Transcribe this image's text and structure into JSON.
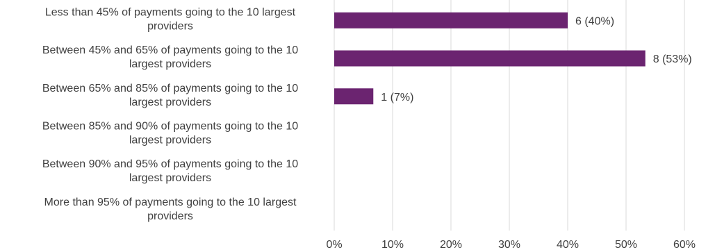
{
  "chart_data": {
    "type": "bar",
    "orientation": "horizontal",
    "categories": [
      [
        "Less than 45% of payments going to the 10 largest",
        "providers"
      ],
      [
        "Between 45% and 65% of payments going to the 10",
        "largest providers"
      ],
      [
        "Between 65% and 85% of payments going to the 10",
        "largest providers"
      ],
      [
        "Between 85% and 90% of payments going to the 10",
        "largest providers"
      ],
      [
        "Between 90% and 95% of payments going to the 10",
        "largest providers"
      ],
      [
        "More than 95% of payments going to the 10 largest",
        "providers"
      ]
    ],
    "values": [
      40,
      53.3,
      6.7,
      0,
      0,
      0
    ],
    "data_labels": [
      "6 (40%)",
      "8 (53%)",
      "1 (7%)",
      "",
      "",
      ""
    ],
    "xlim": [
      0,
      60
    ],
    "x_ticks": [
      0,
      10,
      20,
      30,
      40,
      50,
      60
    ],
    "x_tick_labels": [
      "0%",
      "10%",
      "20%",
      "30%",
      "40%",
      "50%",
      "60%"
    ],
    "grid": "vertical",
    "title": "",
    "xlabel": "",
    "ylabel": "",
    "bar_color": "#6b2470"
  }
}
